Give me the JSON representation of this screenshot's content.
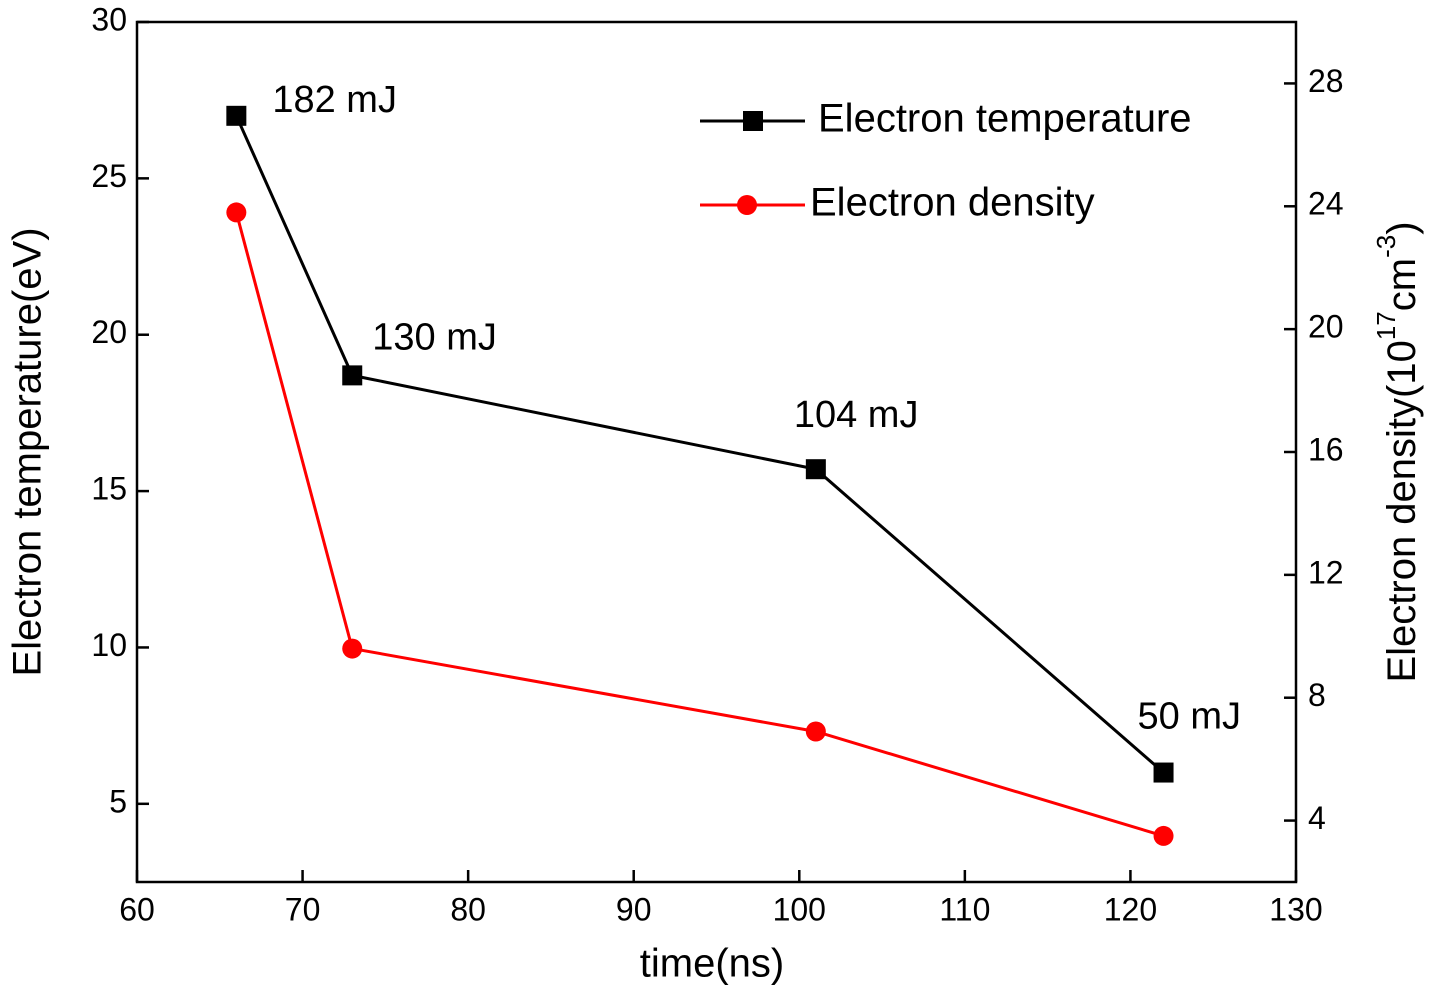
{
  "chart_data": {
    "type": "line",
    "xlabel": "time(ns)",
    "ylabel": "Electron temperature(eV)",
    "y2label": [
      "Electron density(10",
      "17",
      "cm",
      "-3",
      ")"
    ],
    "x": [
      66,
      73,
      101,
      122
    ],
    "xlim": [
      60,
      130
    ],
    "xticks": [
      60,
      70,
      80,
      90,
      100,
      110,
      120,
      130
    ],
    "ylim": [
      2.5,
      30
    ],
    "yticks": [
      5,
      10,
      15,
      20,
      25,
      30
    ],
    "y2lim": [
      2,
      30
    ],
    "y2ticks": [
      4,
      8,
      12,
      16,
      20,
      24,
      28
    ],
    "legend": "upper right",
    "annotations": [
      "182 mJ",
      "130 mJ",
      "104 mJ",
      "50 mJ"
    ],
    "series": [
      {
        "name": "Electron temperature",
        "color": "#000000",
        "marker": "square",
        "values": [
          27.0,
          18.7,
          15.7,
          6.0
        ]
      },
      {
        "name": "Electron density",
        "color": "#ff0000",
        "marker": "circle",
        "axis": "y2",
        "values": [
          23.8,
          9.6,
          6.9,
          3.5
        ]
      }
    ]
  }
}
